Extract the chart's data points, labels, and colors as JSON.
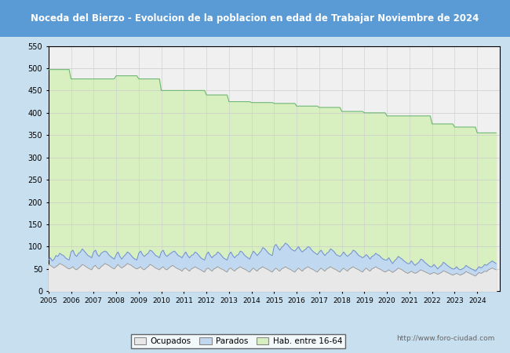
{
  "title": "Noceda del Bierzo - Evolucion de la poblacion en edad de Trabajar Noviembre de 2024",
  "title_bg": "#5b9bd5",
  "title_color": "white",
  "ylim": [
    0,
    550
  ],
  "yticks": [
    0,
    50,
    100,
    150,
    200,
    250,
    300,
    350,
    400,
    450,
    500,
    550
  ],
  "hab_annual": [
    497,
    476,
    476,
    483,
    476,
    450,
    450,
    440,
    425,
    423,
    421,
    415,
    412,
    403,
    400,
    393,
    393,
    375,
    368,
    355
  ],
  "parados_monthly_base": [
    70,
    75,
    68,
    72,
    80,
    78,
    85,
    82,
    80,
    75,
    72,
    70,
    88,
    92,
    82,
    78,
    85,
    88,
    95,
    90,
    85,
    80,
    78,
    75,
    88,
    92,
    82,
    78,
    85,
    88,
    90,
    88,
    82,
    78,
    75,
    72,
    82,
    88,
    78,
    72,
    78,
    82,
    88,
    85,
    80,
    75,
    72,
    70,
    85,
    90,
    82,
    78,
    82,
    85,
    92,
    90,
    85,
    80,
    78,
    75,
    88,
    92,
    82,
    78,
    82,
    85,
    88,
    90,
    85,
    80,
    78,
    75,
    82,
    88,
    80,
    75,
    80,
    82,
    88,
    85,
    80,
    75,
    72,
    70,
    82,
    88,
    80,
    75,
    80,
    82,
    88,
    85,
    80,
    75,
    72,
    70,
    82,
    88,
    80,
    75,
    80,
    82,
    90,
    88,
    82,
    78,
    75,
    72,
    82,
    90,
    85,
    80,
    85,
    90,
    98,
    95,
    90,
    85,
    82,
    80,
    100,
    105,
    98,
    92,
    98,
    102,
    108,
    105,
    100,
    95,
    92,
    90,
    95,
    100,
    92,
    88,
    92,
    95,
    100,
    98,
    92,
    88,
    85,
    82,
    88,
    92,
    85,
    80,
    85,
    88,
    95,
    92,
    88,
    82,
    80,
    78,
    82,
    88,
    82,
    78,
    82,
    85,
    92,
    90,
    85,
    80,
    78,
    75,
    78,
    82,
    78,
    72,
    78,
    80,
    85,
    82,
    80,
    75,
    72,
    70,
    70,
    75,
    68,
    62,
    68,
    72,
    78,
    75,
    72,
    68,
    65,
    62,
    62,
    68,
    62,
    58,
    62,
    65,
    72,
    70,
    65,
    62,
    58,
    55,
    55,
    60,
    55,
    50,
    55,
    58,
    65,
    62,
    58,
    55,
    52,
    50,
    50,
    55,
    50,
    48,
    50,
    52,
    58,
    55,
    52,
    50,
    48,
    45,
    50,
    55,
    52,
    55,
    60,
    58,
    62,
    65,
    68,
    65,
    62,
    60
  ],
  "ocupados_monthly_base": [
    60,
    58,
    55,
    52,
    55,
    58,
    62,
    60,
    58,
    55,
    52,
    50,
    52,
    55,
    50,
    48,
    52,
    55,
    60,
    58,
    55,
    52,
    50,
    48,
    55,
    58,
    52,
    50,
    55,
    58,
    62,
    60,
    58,
    55,
    52,
    50,
    55,
    60,
    55,
    52,
    55,
    58,
    62,
    60,
    58,
    55,
    52,
    50,
    52,
    55,
    50,
    48,
    52,
    55,
    60,
    58,
    55,
    52,
    50,
    48,
    52,
    55,
    50,
    48,
    52,
    55,
    58,
    55,
    52,
    50,
    48,
    45,
    50,
    52,
    48,
    45,
    50,
    52,
    55,
    52,
    50,
    48,
    45,
    43,
    50,
    52,
    48,
    45,
    50,
    52,
    55,
    52,
    50,
    48,
    45,
    43,
    50,
    52,
    48,
    45,
    50,
    52,
    55,
    52,
    50,
    48,
    45,
    43,
    48,
    52,
    48,
    45,
    50,
    52,
    55,
    52,
    50,
    48,
    45,
    43,
    48,
    52,
    48,
    45,
    50,
    52,
    55,
    52,
    50,
    48,
    45,
    43,
    48,
    52,
    48,
    45,
    50,
    52,
    55,
    52,
    50,
    48,
    45,
    43,
    48,
    52,
    48,
    45,
    50,
    52,
    55,
    52,
    50,
    48,
    45,
    43,
    48,
    52,
    48,
    45,
    50,
    52,
    55,
    52,
    50,
    48,
    45,
    43,
    48,
    52,
    48,
    45,
    50,
    52,
    55,
    52,
    50,
    48,
    45,
    43,
    45,
    48,
    45,
    42,
    45,
    48,
    52,
    50,
    48,
    45,
    42,
    40,
    42,
    45,
    42,
    40,
    42,
    45,
    48,
    46,
    44,
    42,
    40,
    38,
    40,
    42,
    40,
    38,
    40,
    42,
    46,
    44,
    42,
    40,
    38,
    36,
    38,
    40,
    38,
    36,
    38,
    40,
    44,
    42,
    40,
    38,
    36,
    34,
    38,
    42,
    40,
    42,
    45,
    44,
    48,
    50,
    52,
    50,
    48,
    46
  ],
  "color_hab": "#d8f0c0",
  "color_parados": "#c0d8f0",
  "color_ocupados": "#e8e8e8",
  "line_hab": "#70b878",
  "line_parados": "#7090c8",
  "line_ocupados": "#909090",
  "watermark": "http://www.foro-ciudad.com",
  "legend_labels": [
    "Ocupados",
    "Parados",
    "Hab. entre 16-64"
  ],
  "bg_color": "#c8dff0",
  "plot_bg": "#f0f0f0",
  "grid_color": "#cccccc"
}
